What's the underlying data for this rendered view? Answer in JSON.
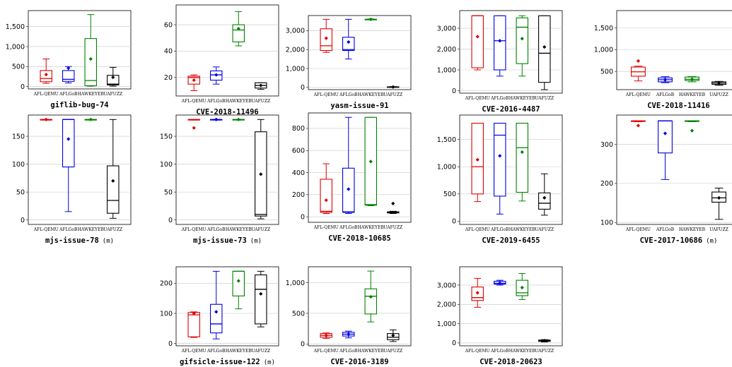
{
  "colors": {
    "AFL-QEMU": "#e00000",
    "AFLGoB": "#0000e0",
    "HawkeyeB": "#008000",
    "UAFuzz": "#000000"
  },
  "chart_data": [
    {
      "type": "box",
      "title": "giflib-bug-74",
      "suffix": "",
      "categories": [
        "AFL-QEMU",
        "AFLGoB",
        "HawkeyeB",
        "UAFuzz"
      ],
      "ylim": [
        -60,
        1900
      ],
      "yticks": [
        0,
        500,
        1000,
        1500
      ],
      "ytick_labels": [
        "0",
        "500",
        "1,000",
        "1,500"
      ],
      "series": [
        {
          "name": "AFL-QEMU",
          "min": 80,
          "q1": 120,
          "median": 200,
          "q3": 400,
          "max": 690,
          "mean": 300
        },
        {
          "name": "AFLGoB",
          "min": 90,
          "q1": 130,
          "median": 180,
          "q3": 400,
          "max": 500,
          "mean": 460
        },
        {
          "name": "HawkeyeB",
          "min": 10,
          "q1": 20,
          "median": 150,
          "q3": 1200,
          "max": 1800,
          "mean": 690
        },
        {
          "name": "UAFuzz",
          "min": 10,
          "q1": 40,
          "median": 60,
          "q3": 280,
          "max": 480,
          "mean": 230
        }
      ]
    },
    {
      "type": "box",
      "title": "CVE-2018-11496",
      "suffix": "",
      "categories": [
        "AFL-QEMU",
        "AFLGoB",
        "HawkeyeB",
        "UAFuzz"
      ],
      "ylim": [
        6,
        75
      ],
      "yticks": [
        20,
        40,
        60
      ],
      "ytick_labels": [
        "20",
        "40",
        "60"
      ],
      "series": [
        {
          "name": "AFL-QEMU",
          "min": 10,
          "q1": 15,
          "median": 20,
          "q3": 21,
          "max": 22,
          "mean": 18
        },
        {
          "name": "AFLGoB",
          "min": 15,
          "q1": 18,
          "median": 22,
          "q3": 25,
          "max": 28,
          "mean": 22
        },
        {
          "name": "HawkeyeB",
          "min": 44,
          "q1": 47,
          "median": 56,
          "q3": 60,
          "max": 70,
          "mean": 57
        },
        {
          "name": "UAFuzz",
          "min": 11,
          "q1": 12,
          "median": 14,
          "q3": 16,
          "max": 16,
          "mean": 14
        }
      ]
    },
    {
      "type": "box",
      "title": "yasm-issue-91",
      "suffix": "",
      "categories": [
        "AFL-QEMU",
        "AFLGoB",
        "HawkeyeB",
        "UAFuzz"
      ],
      "ylim": [
        -120,
        3800
      ],
      "yticks": [
        0,
        1000,
        2000,
        3000
      ],
      "ytick_labels": [
        "0",
        "1,000",
        "2,000",
        "3,000"
      ],
      "series": [
        {
          "name": "AFL-QEMU",
          "min": 1850,
          "q1": 1950,
          "median": 2200,
          "q3": 3100,
          "max": 3600,
          "mean": 2600
        },
        {
          "name": "AFLGoB",
          "min": 1500,
          "q1": 1950,
          "median": 2000,
          "q3": 2650,
          "max": 3600,
          "mean": 2400
        },
        {
          "name": "HawkeyeB",
          "min": 3580,
          "q1": 3590,
          "median": 3600,
          "q3": 3600,
          "max": 3620,
          "mean": 3600
        },
        {
          "name": "UAFuzz",
          "min": 5,
          "q1": 10,
          "median": 20,
          "q3": 30,
          "max": 40,
          "mean": 20
        }
      ]
    },
    {
      "type": "box",
      "title": "CVE-2016-4487",
      "suffix": "",
      "categories": [
        "AFL-QEMU",
        "AFLGoB",
        "HawkeyeB",
        "UAFuzz"
      ],
      "ylim": [
        -120,
        3850
      ],
      "yticks": [
        0,
        1000,
        2000,
        3000
      ],
      "ytick_labels": [
        "0",
        "1,000",
        "2,000",
        "3,000"
      ],
      "series": [
        {
          "name": "AFL-QEMU",
          "min": 1000,
          "q1": 1100,
          "median": 3600,
          "q3": 3600,
          "max": 3600,
          "mean": 2600
        },
        {
          "name": "AFLGoB",
          "min": 700,
          "q1": 1000,
          "median": 2400,
          "q3": 3600,
          "max": 3600,
          "mean": 2400
        },
        {
          "name": "HawkeyeB",
          "min": 700,
          "q1": 1300,
          "median": 3050,
          "q3": 3500,
          "max": 3600,
          "mean": 2500
        },
        {
          "name": "UAFuzz",
          "min": 50,
          "q1": 400,
          "median": 1800,
          "q3": 3600,
          "max": 3600,
          "mean": 2100
        }
      ]
    },
    {
      "type": "box",
      "title": "CVE-2018-11416",
      "suffix": "",
      "categories": [
        "AFL-QEMU",
        "AFLGoB",
        "HawkeyeB",
        "UAFuzz"
      ],
      "ylim": [
        80,
        1900
      ],
      "yticks": [
        500,
        1000,
        1500
      ],
      "ytick_labels": [
        "500",
        "1,000",
        "1,500"
      ],
      "series": [
        {
          "name": "AFL-QEMU",
          "min": 280,
          "q1": 390,
          "median": 490,
          "q3": 600,
          "max": 620,
          "mean": 740
        },
        {
          "name": "AFLGoB",
          "min": 240,
          "q1": 260,
          "median": 310,
          "q3": 350,
          "max": 380,
          "mean": 305
        },
        {
          "name": "HawkeyeB",
          "min": 260,
          "q1": 290,
          "median": 320,
          "q3": 370,
          "max": 380,
          "mean": 320
        },
        {
          "name": "UAFuzz",
          "min": 180,
          "q1": 200,
          "median": 230,
          "q3": 260,
          "max": 270,
          "mean": 230
        }
      ]
    },
    {
      "type": "box",
      "title": "mjs-issue-78",
      "suffix": "(m)",
      "categories": [
        "AFL-QEMU",
        "AFLGoB",
        "HawkeyeB",
        "UAFuzz"
      ],
      "ylim": [
        -8,
        188
      ],
      "yticks": [
        0,
        50,
        100,
        150
      ],
      "ytick_labels": [
        "0",
        "50",
        "100",
        "150"
      ],
      "series": [
        {
          "name": "AFL-QEMU",
          "min": 179,
          "q1": 180,
          "median": 180,
          "q3": 180,
          "max": 180,
          "mean": 180
        },
        {
          "name": "AFLGoB",
          "min": 15,
          "q1": 95,
          "median": 180,
          "q3": 180,
          "max": 180,
          "mean": 145
        },
        {
          "name": "HawkeyeB",
          "min": 179,
          "q1": 180,
          "median": 180,
          "q3": 180,
          "max": 180,
          "mean": 180
        },
        {
          "name": "UAFuzz",
          "min": 3,
          "q1": 12,
          "median": 35,
          "q3": 97,
          "max": 180,
          "mean": 70
        }
      ]
    },
    {
      "type": "box",
      "title": "mjs-issue-73",
      "suffix": "(m)",
      "categories": [
        "AFL-QEMU",
        "AFLGoB",
        "HawkeyeB",
        "UAFuzz"
      ],
      "ylim": [
        -8,
        188
      ],
      "yticks": [
        0,
        50,
        100,
        150
      ],
      "ytick_labels": [
        "0",
        "50",
        "100",
        "150"
      ],
      "series": [
        {
          "name": "AFL-QEMU",
          "min": 179,
          "q1": 180,
          "median": 180,
          "q3": 180,
          "max": 180,
          "mean": 165
        },
        {
          "name": "AFLGoB",
          "min": 179,
          "q1": 180,
          "median": 180,
          "q3": 180,
          "max": 180,
          "mean": 180
        },
        {
          "name": "HawkeyeB",
          "min": 179,
          "q1": 180,
          "median": 180,
          "q3": 180,
          "max": 180,
          "mean": 180
        },
        {
          "name": "UAFuzz",
          "min": 2,
          "q1": 7,
          "median": 10,
          "q3": 158,
          "max": 180,
          "mean": 82
        }
      ]
    },
    {
      "type": "box",
      "title": "CVE-2018-10685",
      "suffix": "",
      "categories": [
        "AFL-QEMU",
        "AFLGoB",
        "HawkeyeB",
        "UAFuzz"
      ],
      "ylim": [
        -50,
        940
      ],
      "yticks": [
        0,
        200,
        400,
        600,
        800
      ],
      "ytick_labels": [
        "0",
        "200",
        "400",
        "600",
        "800"
      ],
      "series": [
        {
          "name": "AFL-QEMU",
          "min": 30,
          "q1": 40,
          "median": 50,
          "q3": 340,
          "max": 480,
          "mean": 150
        },
        {
          "name": "AFLGoB",
          "min": 30,
          "q1": 40,
          "median": 45,
          "q3": 440,
          "max": 900,
          "mean": 250
        },
        {
          "name": "HawkeyeB",
          "min": 100,
          "q1": 105,
          "median": 110,
          "q3": 900,
          "max": 900,
          "mean": 500
        },
        {
          "name": "UAFuzz",
          "min": 30,
          "q1": 35,
          "median": 40,
          "q3": 45,
          "max": 50,
          "mean": 120
        }
      ]
    },
    {
      "type": "box",
      "title": "CVE-2019-6455",
      "suffix": "",
      "categories": [
        "AFL-QEMU",
        "AFLGoB",
        "HawkeyeB",
        "UAFuzz"
      ],
      "ylim": [
        -60,
        1950
      ],
      "yticks": [
        0,
        500,
        1000,
        1500
      ],
      "ytick_labels": [
        "0",
        "500",
        "1,000",
        "1,500"
      ],
      "series": [
        {
          "name": "AFL-QEMU",
          "min": 360,
          "q1": 500,
          "median": 1000,
          "q3": 1800,
          "max": 1800,
          "mean": 1130
        },
        {
          "name": "AFLGoB",
          "min": 130,
          "q1": 460,
          "median": 1580,
          "q3": 1800,
          "max": 1800,
          "mean": 1200
        },
        {
          "name": "HawkeyeB",
          "min": 370,
          "q1": 530,
          "median": 1350,
          "q3": 1800,
          "max": 1800,
          "mean": 1270
        },
        {
          "name": "UAFuzz",
          "min": 110,
          "q1": 220,
          "median": 330,
          "q3": 520,
          "max": 870,
          "mean": 430
        }
      ]
    },
    {
      "type": "box",
      "title": "CVE-2017-10686",
      "suffix": "(m)",
      "categories": [
        "AFL-QEMU",
        "AFLGoB",
        "HawkeyeB",
        "UAFuzz"
      ],
      "ylim": [
        95,
        375
      ],
      "yticks": [
        100,
        200,
        300
      ],
      "ytick_labels": [
        "100",
        "200",
        "300"
      ],
      "series": [
        {
          "name": "AFL-QEMU",
          "min": 358,
          "q1": 359,
          "median": 360,
          "q3": 360,
          "max": 360,
          "mean": 348
        },
        {
          "name": "AFLGoB",
          "min": 210,
          "q1": 278,
          "median": 360,
          "q3": 360,
          "max": 360,
          "mean": 328
        },
        {
          "name": "HawkeyeB",
          "min": 358,
          "q1": 359,
          "median": 360,
          "q3": 360,
          "max": 360,
          "mean": 335
        },
        {
          "name": "UAFuzz",
          "min": 108,
          "q1": 152,
          "median": 163,
          "q3": 178,
          "max": 188,
          "mean": 163
        }
      ]
    },
    {
      "type": "box",
      "title": "gifsicle-issue-122",
      "suffix": "(m)",
      "categories": [
        "AFL-QEMU",
        "AFLGoB",
        "HawkeyeB",
        "UAFuzz"
      ],
      "ylim": [
        -8,
        255
      ],
      "yticks": [
        0,
        100,
        200
      ],
      "ytick_labels": [
        "0",
        "100",
        "200"
      ],
      "series": [
        {
          "name": "AFL-QEMU",
          "min": 20,
          "q1": 22,
          "median": 95,
          "q3": 103,
          "max": 105,
          "mean": 100
        },
        {
          "name": "AFLGoB",
          "min": 15,
          "q1": 35,
          "median": 65,
          "q3": 130,
          "max": 240,
          "mean": 105
        },
        {
          "name": "HawkeyeB",
          "min": 115,
          "q1": 158,
          "median": 240,
          "q3": 240,
          "max": 240,
          "mean": 208
        },
        {
          "name": "UAFuzz",
          "min": 55,
          "q1": 65,
          "median": 180,
          "q3": 228,
          "max": 240,
          "mean": 165
        }
      ]
    },
    {
      "type": "box",
      "title": "CVE-2016-3189",
      "suffix": "",
      "categories": [
        "AFL-QEMU",
        "AFLGoB",
        "HawkeyeB",
        "UAFuzz"
      ],
      "ylim": [
        -30,
        1260
      ],
      "yticks": [
        0,
        500,
        1000
      ],
      "ytick_labels": [
        "0",
        "500",
        "1,000"
      ],
      "series": [
        {
          "name": "AFL-QEMU",
          "min": 90,
          "q1": 110,
          "median": 140,
          "q3": 170,
          "max": 180,
          "mean": 140
        },
        {
          "name": "AFLGoB",
          "min": 100,
          "q1": 130,
          "median": 160,
          "q3": 190,
          "max": 210,
          "mean": 160
        },
        {
          "name": "HawkeyeB",
          "min": 360,
          "q1": 490,
          "median": 780,
          "q3": 900,
          "max": 1190,
          "mean": 770
        },
        {
          "name": "UAFuzz",
          "min": 40,
          "q1": 70,
          "median": 110,
          "q3": 170,
          "max": 230,
          "mean": 140
        }
      ]
    },
    {
      "type": "box",
      "title": "CVE-2018-20623",
      "suffix": "",
      "categories": [
        "AFL-QEMU",
        "AFLGoB",
        "HawkeyeB",
        "UAFuzz"
      ],
      "ylim": [
        -150,
        3950
      ],
      "yticks": [
        0,
        1000,
        2000,
        3000
      ],
      "ytick_labels": [
        "0",
        "1,000",
        "2,000",
        "3,000"
      ],
      "series": [
        {
          "name": "AFL-QEMU",
          "min": 1850,
          "q1": 2200,
          "median": 2350,
          "q3": 2900,
          "max": 3350,
          "mean": 2600
        },
        {
          "name": "AFLGoB",
          "min": 3000,
          "q1": 3050,
          "median": 3100,
          "q3": 3200,
          "max": 3250,
          "mean": 3100
        },
        {
          "name": "HawkeyeB",
          "min": 2250,
          "q1": 2450,
          "median": 2600,
          "q3": 3250,
          "max": 3600,
          "mean": 2870
        },
        {
          "name": "UAFuzz",
          "min": 50,
          "q1": 80,
          "median": 120,
          "q3": 150,
          "max": 170,
          "mean": 120
        }
      ]
    }
  ]
}
